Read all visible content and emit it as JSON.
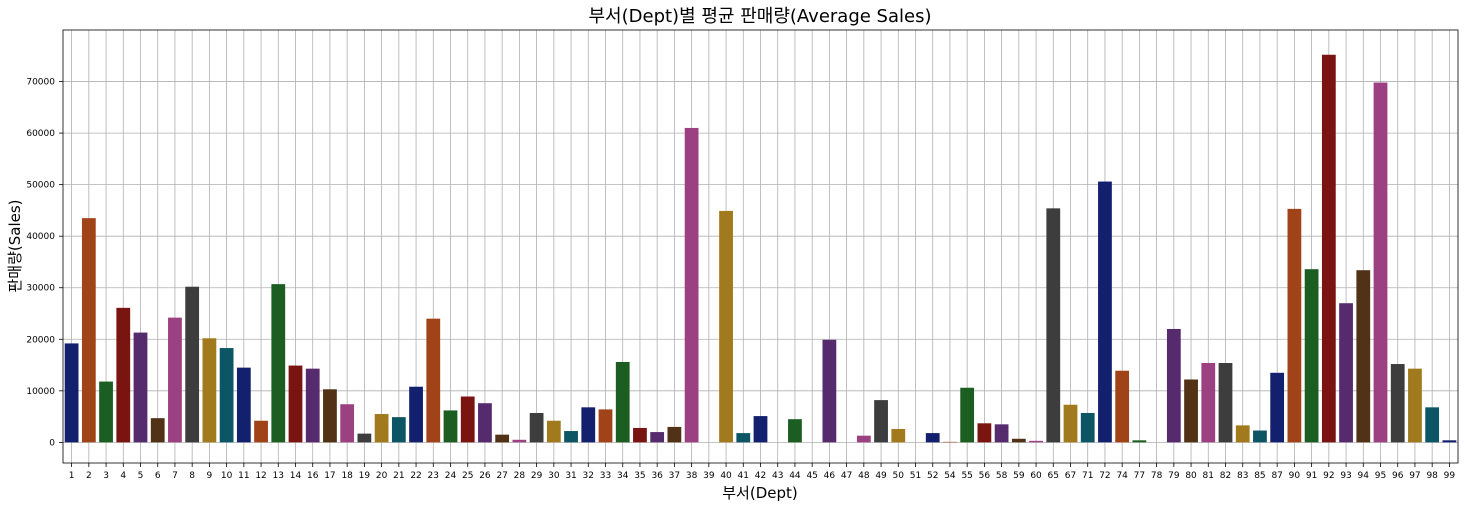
{
  "chart_data": {
    "type": "bar",
    "title": "부서(Dept)별 평균 판매량(Average Sales)",
    "xlabel": "부서(Dept)",
    "ylabel": "판매량(Sales)",
    "ylim": [
      -4000,
      80000
    ],
    "yticks": [
      0,
      10000,
      20000,
      30000,
      40000,
      50000,
      60000,
      70000
    ],
    "grid": true,
    "categories": [
      "1",
      "2",
      "3",
      "4",
      "5",
      "6",
      "7",
      "8",
      "9",
      "10",
      "11",
      "12",
      "13",
      "14",
      "16",
      "17",
      "18",
      "19",
      "20",
      "21",
      "22",
      "23",
      "24",
      "25",
      "26",
      "27",
      "28",
      "29",
      "30",
      "31",
      "32",
      "33",
      "34",
      "35",
      "36",
      "37",
      "38",
      "39",
      "40",
      "41",
      "42",
      "43",
      "44",
      "45",
      "46",
      "47",
      "48",
      "49",
      "50",
      "51",
      "52",
      "54",
      "55",
      "56",
      "58",
      "59",
      "60",
      "65",
      "67",
      "71",
      "72",
      "74",
      "77",
      "78",
      "79",
      "80",
      "81",
      "82",
      "83",
      "85",
      "87",
      "90",
      "91",
      "92",
      "93",
      "94",
      "95",
      "96",
      "97",
      "98",
      "99"
    ],
    "values": [
      19200,
      43500,
      11800,
      26100,
      21300,
      4700,
      24200,
      30200,
      20200,
      18300,
      14500,
      4200,
      30700,
      14900,
      14300,
      10300,
      7400,
      1700,
      5500,
      4900,
      10800,
      24000,
      6200,
      8900,
      7600,
      1500,
      500,
      5700,
      4200,
      2200,
      6800,
      6400,
      15600,
      2800,
      2000,
      3000,
      61000,
      0,
      44900,
      1800,
      5100,
      0,
      4500,
      0,
      19900,
      0,
      1300,
      8200,
      2600,
      0,
      1800,
      100,
      10600,
      3700,
      3500,
      700,
      300,
      45400,
      7300,
      5700,
      50600,
      13900,
      400,
      0,
      22000,
      12200,
      15400,
      15400,
      3300,
      2300,
      13500,
      45300,
      33600,
      75200,
      27000,
      33400,
      69800,
      15200,
      14300,
      6800,
      400
    ],
    "palette": [
      "#12206e",
      "#a04318",
      "#1c5e22",
      "#7a1410",
      "#552b6e",
      "#523217",
      "#9b4080",
      "#3d3d3d",
      "#a07a1c",
      "#0c5565"
    ]
  }
}
